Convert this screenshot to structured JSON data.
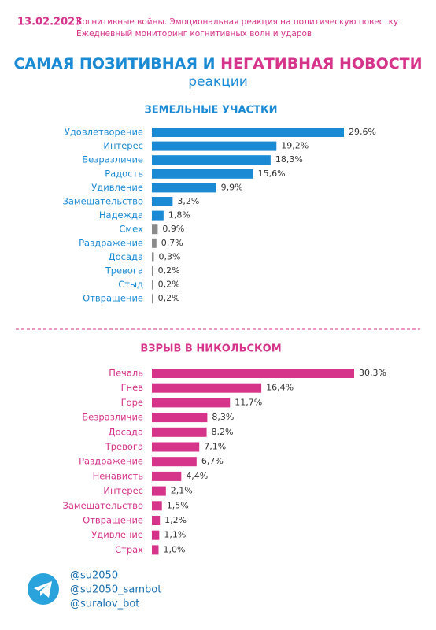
{
  "header": {
    "date": "13.02.2023",
    "line1": "Когнитивные войны. Эмоциональная реакция на политическую повестку",
    "line2": "Ежедневный мониторинг когнитивных волн и ударов",
    "title_part1": "САМАЯ ПОЗИТИВНАЯ И",
    "title_part2": "НЕГАТИВНАЯ НОВОСТИ",
    "subtitle": "реакции"
  },
  "chart_data": [
    {
      "type": "bar",
      "orientation": "horizontal",
      "title": "ЗЕМЕЛЬНЫЕ УЧАСТКИ",
      "title_color": "#1a8ad4",
      "categories": [
        "Удовлетворение",
        "Интерес",
        "Безразличие",
        "Радость",
        "Удивление",
        "Замешательство",
        "Надежда",
        "Смех",
        "Раздражение",
        "Досада",
        "Тревога",
        "Стыд",
        "Отвращение"
      ],
      "values": [
        29.6,
        19.2,
        18.3,
        15.6,
        9.9,
        3.2,
        1.8,
        0.9,
        0.7,
        0.3,
        0.2,
        0.2,
        0.2
      ],
      "value_labels": [
        "29,6%",
        "19,2%",
        "18,3%",
        "15,6%",
        "9,9%",
        "3,2%",
        "1,8%",
        "0,9%",
        "0,7%",
        "0,3%",
        "0,2%",
        "0,2%",
        "0,2%"
      ],
      "colors": [
        "#1a8ad4",
        "#1a8ad4",
        "#1a8ad4",
        "#1a8ad4",
        "#1a8ad4",
        "#1a8ad4",
        "#1a8ad4",
        "#8a8a8a",
        "#8a8a8a",
        "#8a8a8a",
        "#8a8a8a",
        "#8a8a8a",
        "#8a8a8a"
      ]
    },
    {
      "type": "bar",
      "orientation": "horizontal",
      "title": "ВЗРЫВ В НИКОЛЬСКОМ",
      "title_color": "#d6338a",
      "categories": [
        "Печаль",
        "Гнев",
        "Горе",
        "Безразличие",
        "Досада",
        "Тревога",
        "Раздражение",
        "Ненависть",
        "Интерес",
        "Замешательство",
        "Отвращение",
        "Удивление",
        "Страх"
      ],
      "values": [
        30.3,
        16.4,
        11.7,
        8.3,
        8.2,
        7.1,
        6.7,
        4.4,
        2.1,
        1.5,
        1.2,
        1.1,
        1.0
      ],
      "value_labels": [
        "30,3%",
        "16,4%",
        "11,7%",
        "8,3%",
        "8,2%",
        "7,1%",
        "6,7%",
        "4,4%",
        "2,1%",
        "1,5%",
        "1,2%",
        "1,1%",
        "1,0%"
      ],
      "colors": [
        "#d6338a",
        "#d6338a",
        "#d6338a",
        "#d6338a",
        "#d6338a",
        "#d6338a",
        "#d6338a",
        "#d6338a",
        "#d6338a",
        "#d6338a",
        "#d6338a",
        "#d6338a",
        "#d6338a"
      ]
    }
  ],
  "footer": {
    "handles": [
      "@su2050",
      "@su2050_sambot",
      "@suralov_bot"
    ]
  }
}
